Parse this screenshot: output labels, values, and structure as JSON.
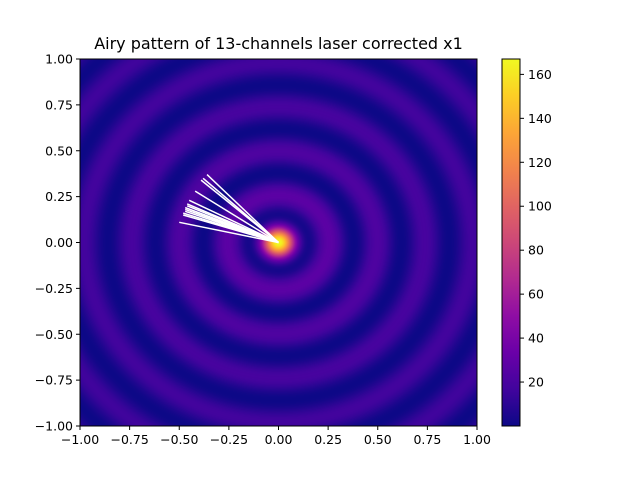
{
  "chart_data": {
    "type": "heatmap",
    "title": "Airy pattern of 13-channels laser corrected x1",
    "xlabel": "",
    "ylabel": "",
    "xlim": [
      -1.0,
      1.0
    ],
    "ylim": [
      -1.0,
      1.0
    ],
    "x_ticks": [
      "−1.00",
      "−0.75",
      "−0.50",
      "−0.25",
      "0.00",
      "0.25",
      "0.50",
      "0.75",
      "1.00"
    ],
    "y_ticks": [
      "1.00",
      "0.75",
      "0.50",
      "0.25",
      "0.00",
      "−0.25",
      "−0.50",
      "−0.75",
      "−1.00"
    ],
    "grid": false,
    "colormap": "plasma",
    "colorbar": {
      "range": [
        0,
        167
      ],
      "ticks": [
        "20",
        "40",
        "60",
        "80",
        "100",
        "120",
        "140",
        "160"
      ],
      "tick_values": [
        20,
        40,
        60,
        80,
        100,
        120,
        140,
        160
      ]
    },
    "peak_value": 167,
    "center": [
      0.0,
      0.0
    ],
    "line_color": "#ffffff",
    "channel_vectors": [
      {
        "x": -0.36,
        "y": 0.37
      },
      {
        "x": -0.38,
        "y": 0.35
      },
      {
        "x": -0.39,
        "y": 0.34
      },
      {
        "x": -0.42,
        "y": 0.28
      },
      {
        "x": -0.45,
        "y": 0.23
      },
      {
        "x": -0.46,
        "y": 0.21
      },
      {
        "x": -0.46,
        "y": 0.2
      },
      {
        "x": -0.47,
        "y": 0.19
      },
      {
        "x": -0.47,
        "y": 0.18
      },
      {
        "x": -0.47,
        "y": 0.17
      },
      {
        "x": -0.48,
        "y": 0.16
      },
      {
        "x": -0.48,
        "y": 0.15
      },
      {
        "x": -0.5,
        "y": 0.11
      }
    ]
  }
}
